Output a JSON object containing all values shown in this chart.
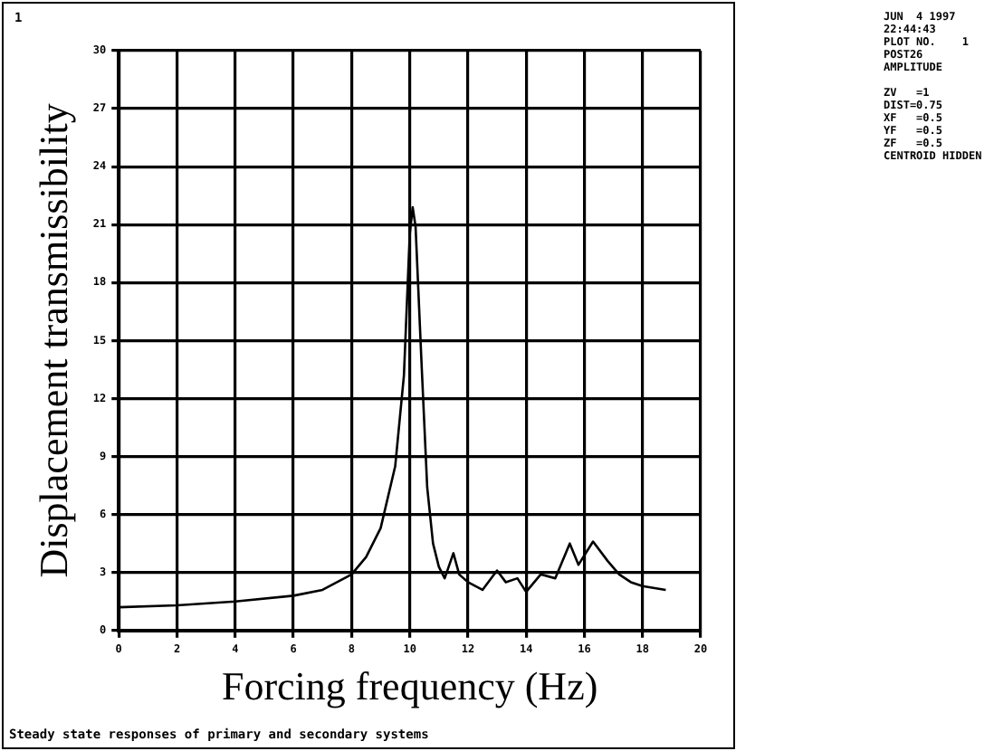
{
  "chart_data": {
    "type": "line",
    "xlabel": "Forcing frequency (Hz)",
    "ylabel": "Displacement transmissibility",
    "annotations": [
      "1",
      "JUN  4 1997",
      "22:44:43",
      "PLOT NO.    1",
      "POST26",
      "AMPLITUDE",
      "ZV   =1",
      "DIST=0.75",
      "XF   =0.5",
      "YF   =0.5",
      "ZF   =0.5",
      "CENTROID HIDDEN",
      "Steady state responses of primary and secondary systems"
    ],
    "x": [
      0,
      2,
      4,
      6,
      7,
      8,
      8.5,
      9,
      9.5,
      9.8,
      10,
      10.1,
      10.2,
      10.4,
      10.6,
      10.8,
      11,
      11.2,
      11.5,
      11.7,
      12,
      12.5,
      13,
      13.3,
      13.7,
      14,
      14.5,
      15,
      15.5,
      15.8,
      16.3,
      16.8,
      17.2,
      17.6,
      18,
      18.8
    ],
    "series": [
      {
        "color": "#000000",
        "values": [
          1.2,
          1.3,
          1.5,
          1.8,
          2.1,
          2.9,
          3.8,
          5.3,
          8.5,
          13.2,
          20.5,
          21.9,
          20.9,
          14,
          7.4,
          4.5,
          3.3,
          2.7,
          4,
          2.9,
          2.5,
          2.1,
          3.1,
          2.5,
          2.7,
          2,
          2.9,
          2.7,
          4.5,
          3.4,
          4.6,
          3.6,
          2.9,
          2.5,
          2.3,
          2.1
        ]
      }
    ],
    "xlim": [
      0,
      20
    ],
    "xticks": [
      0,
      2,
      4,
      6,
      8,
      10,
      12,
      14,
      16,
      18,
      20
    ],
    "ylim": [
      0,
      30
    ],
    "yticks": [
      0,
      3,
      6,
      9,
      12,
      15,
      18,
      21,
      24,
      27,
      30
    ],
    "grid": true,
    "legend": false,
    "marker": "none",
    "line_style": "solid"
  }
}
